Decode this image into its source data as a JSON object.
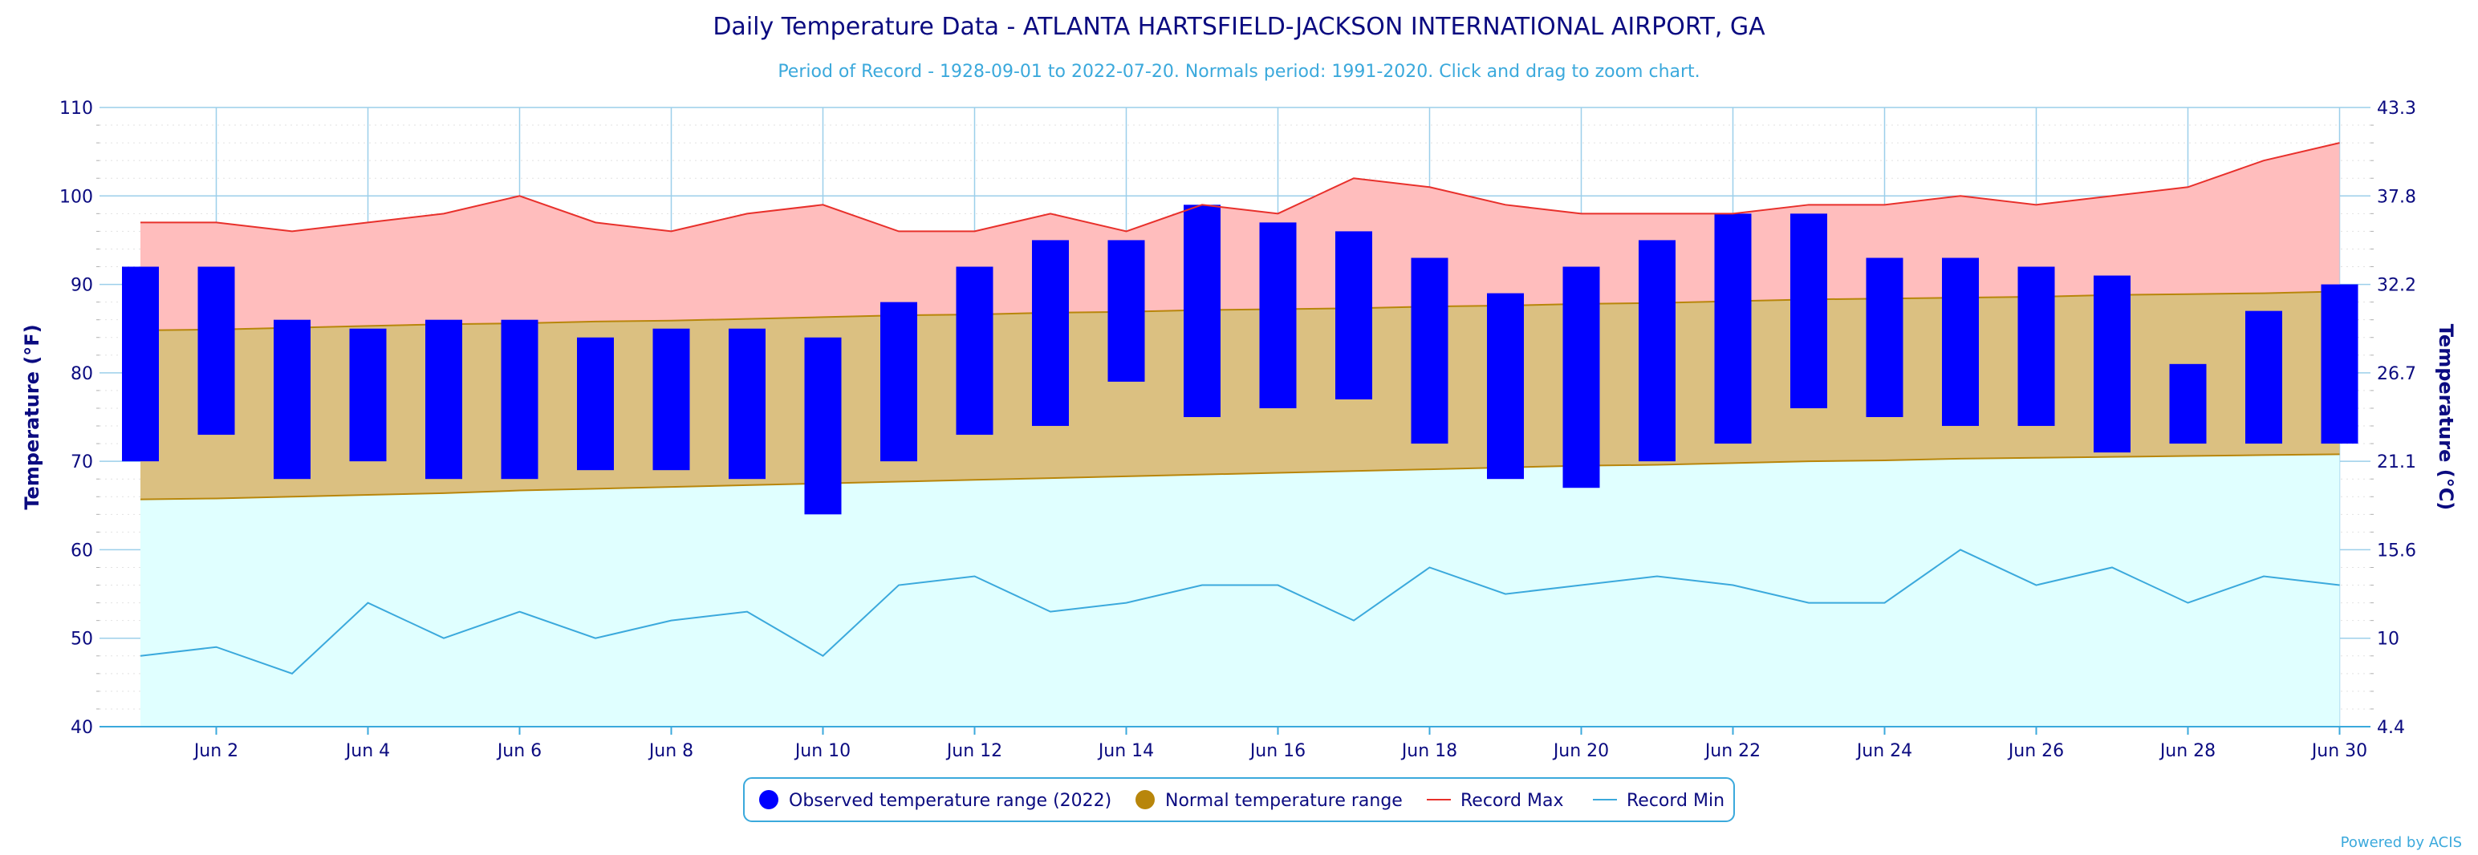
{
  "chart_data": {
    "type": "bar",
    "title": "Daily Temperature Data - ATLANTA HARTSFIELD-JACKSON INTERNATIONAL AIRPORT, GA",
    "subtitle": "Period of Record - 1928-09-01 to 2022-07-20. Normals period: 1991-2020. Click and drag to zoom chart.",
    "ylabel_left": "Temperature (°F)",
    "ylabel_right": "Temperature (°C)",
    "ylim": [
      40,
      110
    ],
    "y_ticks_left": [
      "40",
      "50",
      "60",
      "70",
      "80",
      "90",
      "100",
      "110"
    ],
    "y_ticks_right": [
      "4.4",
      "10",
      "15.6",
      "21.1",
      "26.7",
      "32.2",
      "37.8",
      "43.3"
    ],
    "x_tick_labels": [
      "Jun 2",
      "Jun 4",
      "Jun 6",
      "Jun 8",
      "Jun 10",
      "Jun 12",
      "Jun 14",
      "Jun 16",
      "Jun 18",
      "Jun 20",
      "Jun 22",
      "Jun 24",
      "Jun 26",
      "Jun 28",
      "Jun 30"
    ],
    "days": [
      1,
      2,
      3,
      4,
      5,
      6,
      7,
      8,
      9,
      10,
      11,
      12,
      13,
      14,
      15,
      16,
      17,
      18,
      19,
      20,
      21,
      22,
      23,
      24,
      25,
      26,
      27,
      28,
      29,
      30
    ],
    "series": [
      {
        "name": "Observed temperature range (2022)",
        "color": "#0000ff",
        "low": [
          70,
          73,
          68,
          70,
          68,
          68,
          69,
          69,
          68,
          64,
          70,
          73,
          74,
          79,
          75,
          76,
          77,
          72,
          68,
          67,
          70,
          72,
          76,
          75,
          74,
          74,
          71,
          72,
          72,
          72
        ],
        "high": [
          92,
          92,
          86,
          85,
          86,
          86,
          84,
          85,
          85,
          84,
          88,
          92,
          95,
          95,
          99,
          97,
          96,
          93,
          89,
          92,
          95,
          98,
          98,
          93,
          93,
          92,
          91,
          81,
          87,
          90
        ]
      },
      {
        "name": "Normal temperature range",
        "color": "#b8860b",
        "low": [
          65.7,
          65.8,
          66.0,
          66.2,
          66.4,
          66.7,
          66.9,
          67.1,
          67.3,
          67.5,
          67.7,
          67.9,
          68.1,
          68.3,
          68.5,
          68.7,
          68.9,
          69.1,
          69.3,
          69.5,
          69.6,
          69.8,
          70.0,
          70.1,
          70.3,
          70.4,
          70.5,
          70.6,
          70.7,
          70.8
        ],
        "high": [
          84.8,
          84.9,
          85.1,
          85.3,
          85.5,
          85.6,
          85.8,
          85.9,
          86.1,
          86.3,
          86.5,
          86.6,
          86.8,
          86.9,
          87.1,
          87.2,
          87.3,
          87.5,
          87.6,
          87.8,
          87.9,
          88.1,
          88.3,
          88.4,
          88.5,
          88.6,
          88.8,
          88.9,
          89.0,
          89.2
        ]
      },
      {
        "name": "Record Max",
        "color": "#e8302b",
        "values": [
          97,
          97,
          96,
          97,
          98,
          100,
          97,
          96,
          98,
          99,
          96,
          96,
          98,
          96,
          99,
          98,
          102,
          101,
          99,
          98,
          98,
          98,
          99,
          99,
          100,
          99,
          100,
          101,
          104,
          106
        ]
      },
      {
        "name": "Record Min",
        "color": "#3ba9dc",
        "values": [
          48,
          49,
          46,
          54,
          50,
          53,
          50,
          52,
          53,
          48,
          56,
          57,
          53,
          54,
          56,
          56,
          52,
          58,
          55,
          56,
          57,
          56,
          54,
          54,
          60,
          56,
          58,
          54,
          57,
          56
        ]
      }
    ],
    "legend_position": "bottom-center",
    "grid": true
  },
  "credit": "Powered by ACIS"
}
